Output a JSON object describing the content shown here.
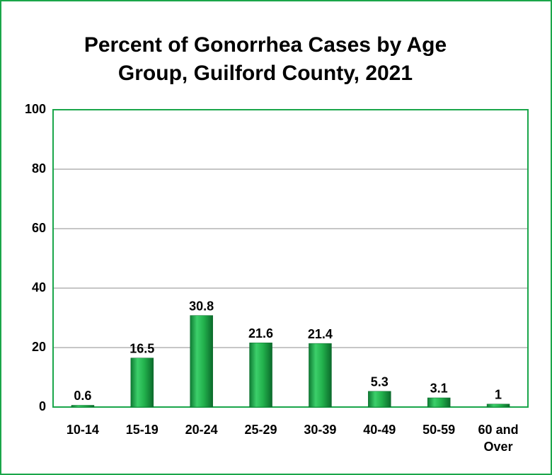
{
  "chart_data": {
    "type": "bar",
    "title": "Percent of Gonorrhea Cases by Age Group, Guilford County, 2021",
    "categories": [
      "10-14",
      "15-19",
      "20-24",
      "25-29",
      "30-39",
      "40-49",
      "50-59",
      "60 and Over"
    ],
    "values": [
      0.6,
      16.5,
      30.8,
      21.6,
      21.4,
      5.3,
      3.1,
      1
    ],
    "color": "#22b14c",
    "ylim": [
      0,
      100
    ],
    "yticks": [
      0,
      20,
      40,
      60,
      80,
      100
    ],
    "grid": true
  }
}
